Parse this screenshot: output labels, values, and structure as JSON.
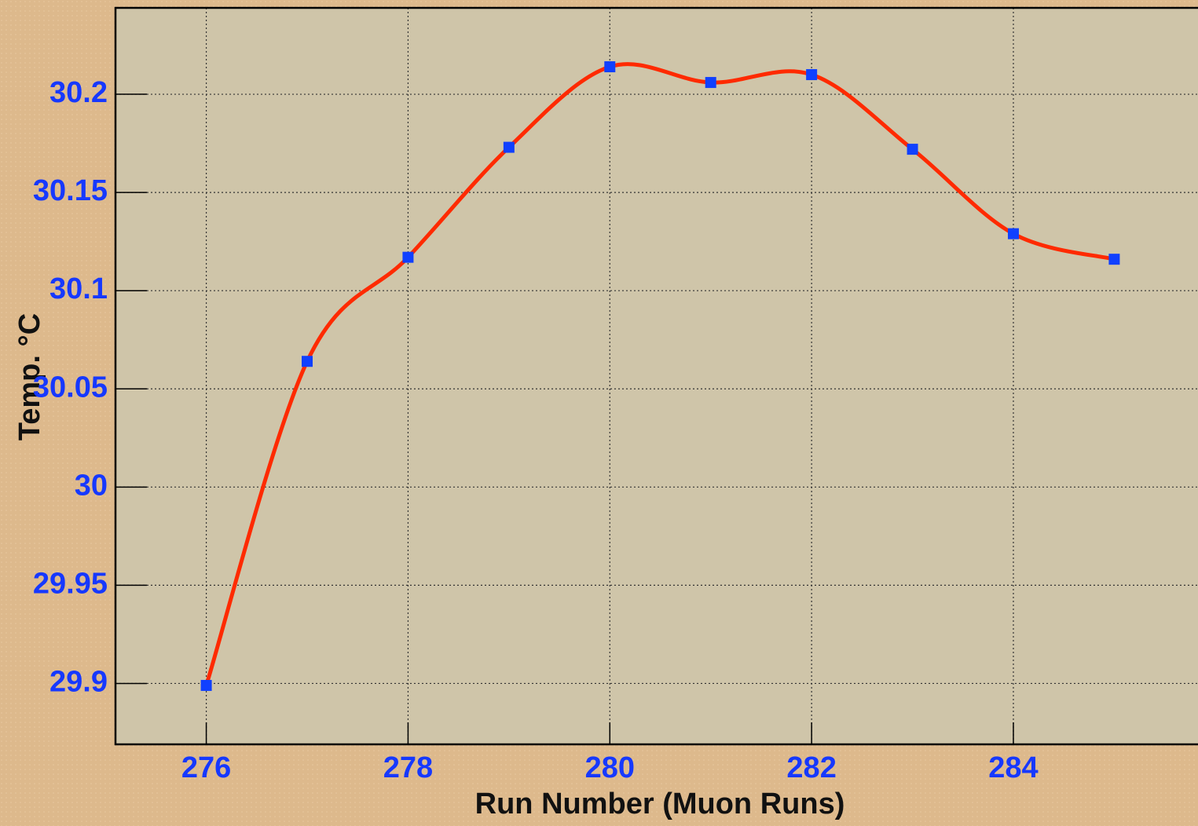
{
  "chart_data": {
    "type": "line",
    "x_label": "Run Number (Muon Runs)",
    "y_label": "Temp. °C",
    "x": [
      276,
      277,
      278,
      279,
      280,
      281,
      282,
      283,
      284,
      285
    ],
    "series": [
      {
        "name": "Temp",
        "color": "#ff2a00",
        "marker_color": "#1040ff",
        "values": [
          29.899,
          30.064,
          30.117,
          30.173,
          30.214,
          30.206,
          30.21,
          30.172,
          30.129,
          30.116
        ]
      }
    ],
    "xlim": [
      275.1,
      285.83
    ],
    "xticks": [
      276,
      278,
      280,
      282,
      284
    ],
    "ylim": [
      29.869,
      30.244
    ],
    "yticks": [
      29.9,
      29.95,
      30,
      30.05,
      30.1,
      30.15,
      30.2
    ],
    "grid": true
  }
}
